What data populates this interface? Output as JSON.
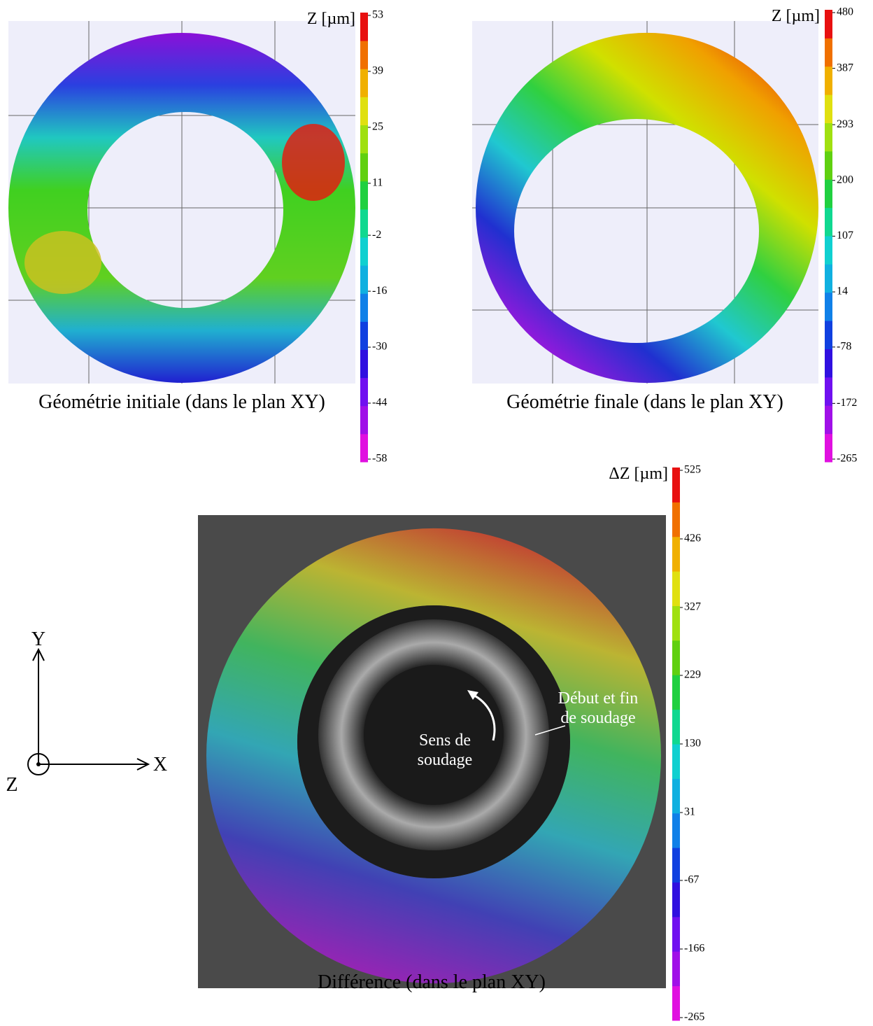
{
  "panels": [
    {
      "caption": "Géométrie initiale (dans le plan XY)",
      "colorbar": {
        "label": "Z [µm]",
        "ticks": [
          53,
          39,
          25,
          11,
          -2,
          -16,
          -30,
          -44,
          -58
        ]
      }
    },
    {
      "caption": "Géométrie finale (dans le plan XY)",
      "colorbar": {
        "label": "Z [µm]",
        "ticks": [
          480,
          387,
          293,
          200,
          107,
          14,
          -78,
          -172,
          -265
        ]
      }
    },
    {
      "caption": "Différence (dans le plan XY)",
      "colorbar": {
        "label": "ΔZ [µm]",
        "ticks": [
          525,
          426,
          327,
          229,
          130,
          31,
          -67,
          -166,
          -265
        ]
      }
    }
  ],
  "axes": {
    "x": "X",
    "y": "Y",
    "z": "Z"
  },
  "annotations": {
    "direction": [
      "Sens de",
      "soudage"
    ],
    "start_end": [
      "Début et fin",
      "de soudage"
    ]
  }
}
